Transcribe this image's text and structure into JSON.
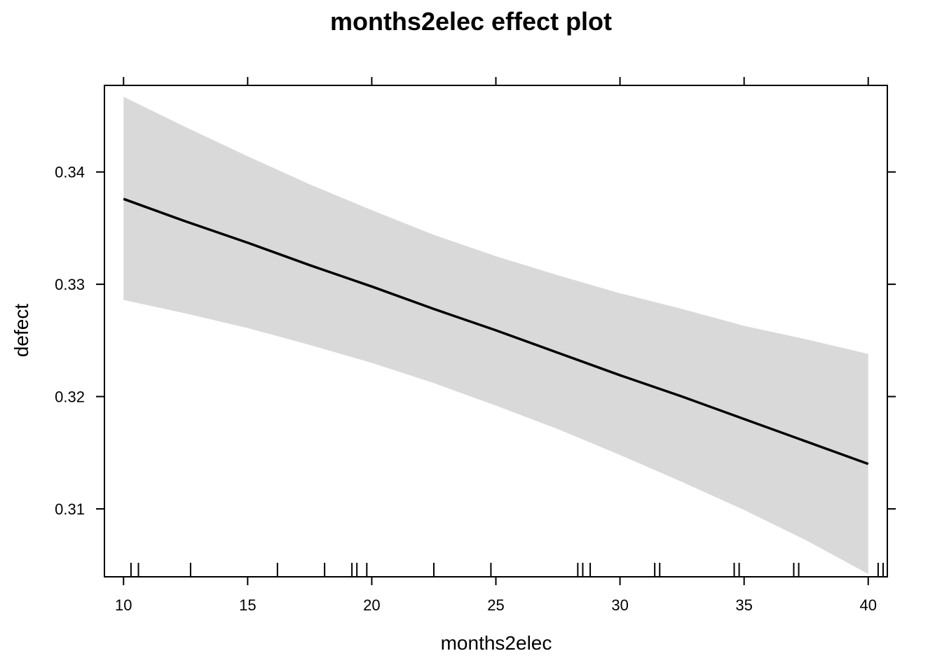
{
  "chart_data": {
    "type": "line",
    "title": "months2elec effect plot",
    "xlabel": "months2elec",
    "ylabel": "defect",
    "xlim": [
      9.23,
      40.77
    ],
    "ylim": [
      0.30395,
      0.34771
    ],
    "x_ticks": [
      10,
      15,
      20,
      25,
      30,
      35,
      40
    ],
    "x_tick_labels": [
      "10",
      "15",
      "20",
      "25",
      "30",
      "35",
      "40"
    ],
    "y_ticks": [
      0.31,
      0.32,
      0.33,
      0.34
    ],
    "y_tick_labels": [
      "0.31",
      "0.32",
      "0.33",
      "0.34"
    ],
    "grid": false,
    "legend": "none",
    "colors": {
      "line": "#000000",
      "band": "#d9d9d9",
      "frame": "#000000"
    },
    "series": [
      {
        "x": [
          10,
          12.5,
          15,
          17.5,
          20,
          22.5,
          25,
          27.5,
          30,
          32.5,
          35,
          37.5,
          40
        ],
        "y": [
          0.3376,
          0.3356,
          0.3337,
          0.3317,
          0.3298,
          0.3278,
          0.3259,
          0.3239,
          0.3219,
          0.32,
          0.318,
          0.316,
          0.314
        ],
        "lower": [
          0.3286,
          0.3274,
          0.3261,
          0.3246,
          0.323,
          0.3212,
          0.3192,
          0.3171,
          0.3148,
          0.3124,
          0.3099,
          0.3072,
          0.3042
        ],
        "upper": [
          0.3467,
          0.344,
          0.3414,
          0.3389,
          0.3366,
          0.3344,
          0.3325,
          0.3308,
          0.3292,
          0.3278,
          0.3263,
          0.3251,
          0.3238
        ]
      }
    ],
    "rug": [
      10.3,
      10.6,
      12.7,
      16.2,
      18.1,
      19.2,
      19.4,
      19.8,
      22.5,
      24.8,
      28.3,
      28.5,
      28.8,
      31.4,
      31.6,
      34.6,
      34.8,
      37.0,
      37.2,
      40.4,
      40.6
    ]
  }
}
